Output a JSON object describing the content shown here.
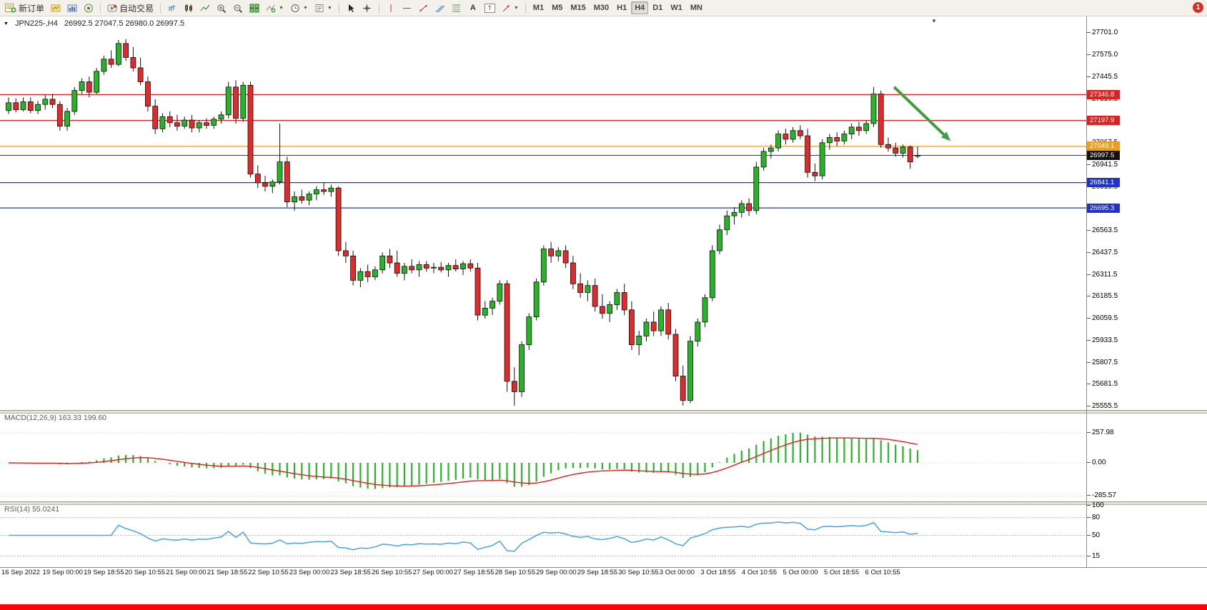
{
  "icons": {
    "dropdown": "▼",
    "shift_marker": "▼",
    "chevron": "▼",
    "text_tool": "A",
    "textbox_letter": "T"
  },
  "toolbar": {
    "new_order": "新订单",
    "autotrading": "自动交易",
    "timeframes": [
      "M1",
      "M5",
      "M15",
      "M30",
      "H1",
      "H4",
      "D1",
      "W1",
      "MN"
    ],
    "active_timeframe": "H4",
    "notification_count": "1"
  },
  "chart": {
    "symbol_period": "JPN225-,H4",
    "ohlc": "26992.5 27047.5 26980.0 26997.5"
  },
  "chart_data": {
    "type": "candlestick",
    "symbol": "JPN225-",
    "timeframe": "H4",
    "price_range": {
      "top": 27701.0,
      "bottom": 25555.5
    },
    "price_axis_ticks": [
      27701.0,
      27575.0,
      27445.5,
      27319.5,
      27193.5,
      27067.5,
      26941.5,
      26815.5,
      26689.5,
      26563.5,
      26437.5,
      26311.5,
      26185.5,
      26059.5,
      25933.5,
      25807.5,
      25681.5,
      25555.5
    ],
    "hlines": [
      {
        "price": 27346.8,
        "label": "27346.8",
        "color": "#dd2222"
      },
      {
        "price": 27197.9,
        "label": "27197.9",
        "color": "#dd2222"
      },
      {
        "price": 27049.1,
        "label": "27049.1",
        "color": "#ee9f22"
      },
      {
        "price": 26841.1,
        "label": "26841.1",
        "color": "#2233cc"
      },
      {
        "price": 26695.3,
        "label": "26695.3",
        "color": "#2233cc"
      }
    ],
    "current_price": {
      "price": 26997.5,
      "label": "26997.5",
      "color": "#111111"
    },
    "arrow": {
      "from_index": 120.8,
      "from_price": 27390,
      "to_index": 128.5,
      "to_price": 27080,
      "color": "#3f9e3f"
    },
    "candle_colors": {
      "bull": "#29b329",
      "bear": "#df2b2b",
      "outline": "#111111"
    },
    "candles": [
      [
        27255,
        27330,
        27235,
        27300
      ],
      [
        27300,
        27325,
        27245,
        27260
      ],
      [
        27260,
        27330,
        27250,
        27305
      ],
      [
        27305,
        27330,
        27240,
        27255
      ],
      [
        27255,
        27310,
        27235,
        27290
      ],
      [
        27290,
        27345,
        27260,
        27320
      ],
      [
        27320,
        27350,
        27270,
        27290
      ],
      [
        27290,
        27310,
        27140,
        27165
      ],
      [
        27165,
        27270,
        27140,
        27250
      ],
      [
        27250,
        27390,
        27230,
        27370
      ],
      [
        27370,
        27440,
        27350,
        27420
      ],
      [
        27420,
        27450,
        27330,
        27360
      ],
      [
        27360,
        27500,
        27350,
        27480
      ],
      [
        27480,
        27570,
        27460,
        27550
      ],
      [
        27550,
        27600,
        27500,
        27520
      ],
      [
        27520,
        27660,
        27510,
        27640
      ],
      [
        27640,
        27665,
        27540,
        27560
      ],
      [
        27560,
        27620,
        27480,
        27500
      ],
      [
        27500,
        27560,
        27400,
        27420
      ],
      [
        27420,
        27450,
        27250,
        27280
      ],
      [
        27280,
        27320,
        27120,
        27150
      ],
      [
        27150,
        27240,
        27130,
        27220
      ],
      [
        27220,
        27250,
        27160,
        27185
      ],
      [
        27185,
        27230,
        27140,
        27165
      ],
      [
        27165,
        27220,
        27150,
        27200
      ],
      [
        27200,
        27230,
        27130,
        27155
      ],
      [
        27155,
        27200,
        27130,
        27185
      ],
      [
        27185,
        27210,
        27150,
        27170
      ],
      [
        27170,
        27220,
        27150,
        27205
      ],
      [
        27205,
        27250,
        27180,
        27230
      ],
      [
        27230,
        27420,
        27210,
        27390
      ],
      [
        27390,
        27430,
        27180,
        27210
      ],
      [
        27210,
        27420,
        27190,
        27400
      ],
      [
        27400,
        27420,
        26870,
        26890
      ],
      [
        26890,
        26940,
        26810,
        26840
      ],
      [
        26840,
        26880,
        26790,
        26820
      ],
      [
        26820,
        26860,
        26780,
        26845
      ],
      [
        26845,
        27180,
        26830,
        26960
      ],
      [
        26960,
        26990,
        26700,
        26730
      ],
      [
        26730,
        26790,
        26680,
        26760
      ],
      [
        26760,
        26800,
        26720,
        26740
      ],
      [
        26740,
        26790,
        26710,
        26775
      ],
      [
        26775,
        26820,
        26740,
        26800
      ],
      [
        26800,
        26840,
        26770,
        26790
      ],
      [
        26790,
        26830,
        26760,
        26810
      ],
      [
        26810,
        26820,
        26420,
        26450
      ],
      [
        26450,
        26500,
        26380,
        26420
      ],
      [
        26420,
        26450,
        26250,
        26280
      ],
      [
        26280,
        26350,
        26240,
        26330
      ],
      [
        26330,
        26370,
        26270,
        26300
      ],
      [
        26300,
        26360,
        26280,
        26340
      ],
      [
        26340,
        26440,
        26320,
        26420
      ],
      [
        26420,
        26460,
        26350,
        26380
      ],
      [
        26380,
        26450,
        26300,
        26320
      ],
      [
        26320,
        26380,
        26280,
        26360
      ],
      [
        26360,
        26400,
        26320,
        26340
      ],
      [
        26340,
        26390,
        26300,
        26370
      ],
      [
        26370,
        26390,
        26330,
        26350
      ],
      [
        26350,
        26380,
        26320,
        26355
      ],
      [
        26355,
        26385,
        26325,
        26340
      ],
      [
        26340,
        26380,
        26300,
        26365
      ],
      [
        26365,
        26400,
        26330,
        26345
      ],
      [
        26345,
        26390,
        26310,
        26375
      ],
      [
        26375,
        26400,
        26330,
        26350
      ],
      [
        26350,
        26380,
        26050,
        26080
      ],
      [
        26080,
        26160,
        26060,
        26120
      ],
      [
        26120,
        26180,
        26080,
        26160
      ],
      [
        26160,
        26280,
        26140,
        26260
      ],
      [
        26260,
        26280,
        25640,
        25700
      ],
      [
        25700,
        25780,
        25560,
        25640
      ],
      [
        25640,
        25930,
        25610,
        25910
      ],
      [
        25910,
        26090,
        25880,
        26070
      ],
      [
        26070,
        26290,
        26050,
        26270
      ],
      [
        26270,
        26480,
        26250,
        26460
      ],
      [
        26460,
        26500,
        26380,
        26420
      ],
      [
        26420,
        26470,
        26390,
        26450
      ],
      [
        26450,
        26480,
        26350,
        26380
      ],
      [
        26380,
        26420,
        26230,
        26260
      ],
      [
        26260,
        26320,
        26180,
        26210
      ],
      [
        26210,
        26280,
        26160,
        26250
      ],
      [
        26250,
        26290,
        26100,
        26130
      ],
      [
        26130,
        26200,
        26060,
        26090
      ],
      [
        26090,
        26160,
        26040,
        26140
      ],
      [
        26140,
        26230,
        26110,
        26210
      ],
      [
        26210,
        26260,
        26080,
        26110
      ],
      [
        26110,
        26160,
        25880,
        25910
      ],
      [
        25910,
        25990,
        25850,
        25960
      ],
      [
        25960,
        26060,
        25930,
        26040
      ],
      [
        26040,
        26100,
        25960,
        25990
      ],
      [
        25990,
        26130,
        25960,
        26110
      ],
      [
        26110,
        26150,
        25940,
        25970
      ],
      [
        25970,
        26000,
        25700,
        25730
      ],
      [
        25730,
        25790,
        25560,
        25590
      ],
      [
        25590,
        25960,
        25575,
        25930
      ],
      [
        25930,
        26060,
        25900,
        26040
      ],
      [
        26040,
        26200,
        26010,
        26180
      ],
      [
        26180,
        26480,
        26160,
        26450
      ],
      [
        26450,
        26600,
        26430,
        26570
      ],
      [
        26570,
        26680,
        26540,
        26650
      ],
      [
        26650,
        26700,
        26600,
        26670
      ],
      [
        26670,
        26740,
        26640,
        26720
      ],
      [
        26720,
        26750,
        26650,
        26680
      ],
      [
        26680,
        26960,
        26660,
        26930
      ],
      [
        26930,
        27040,
        26910,
        27020
      ],
      [
        27020,
        27060,
        26980,
        27040
      ],
      [
        27040,
        27140,
        27020,
        27120
      ],
      [
        27120,
        27150,
        27060,
        27090
      ],
      [
        27090,
        27160,
        27070,
        27140
      ],
      [
        27140,
        27170,
        27090,
        27110
      ],
      [
        27110,
        27150,
        26870,
        26900
      ],
      [
        26900,
        26950,
        26850,
        26880
      ],
      [
        26880,
        27090,
        26860,
        27070
      ],
      [
        27070,
        27120,
        27030,
        27100
      ],
      [
        27100,
        27130,
        27050,
        27080
      ],
      [
        27080,
        27140,
        27060,
        27120
      ],
      [
        27120,
        27180,
        27090,
        27160
      ],
      [
        27160,
        27190,
        27110,
        27140
      ],
      [
        27140,
        27200,
        27120,
        27180
      ],
      [
        27180,
        27390,
        27160,
        27350
      ],
      [
        27350,
        27370,
        27040,
        27060
      ],
      [
        27060,
        27100,
        27020,
        27040
      ],
      [
        27040,
        27070,
        26990,
        27010
      ],
      [
        27010,
        27060,
        26985,
        27045
      ],
      [
        27045,
        27055,
        26920,
        26960
      ],
      [
        26992.5,
        27047.5,
        26980.0,
        26997.5
      ]
    ],
    "time_labels": [
      "16 Sep 2022",
      "19 Sep 00:00",
      "19 Sep 18:55",
      "20 Sep 10:55",
      "21 Sep 00:00",
      "21 Sep 18:55",
      "22 Sep 10:55",
      "23 Sep 00:00",
      "23 Sep 18:55",
      "26 Sep 10:55",
      "27 Sep 00:00",
      "27 Sep 18:55",
      "28 Sep 10:55",
      "29 Sep 00:00",
      "29 Sep 18:55",
      "30 Sep 10:55",
      "3 Oct 00:00",
      "3 Oct 18:55",
      "4 Oct 10:55",
      "5 Oct 00:00",
      "5 Oct 18:55",
      "6 Oct 10:55"
    ],
    "indicators": {
      "macd": {
        "label": "MACD(12,26,9) 163.33 199.60",
        "value_main": 163.33,
        "value_signal": 199.6,
        "axis_ticks": [
          "257.98",
          "0.00",
          "-285.57"
        ],
        "axis_values": [
          257.98,
          0,
          -285.57
        ],
        "hist_color": "#2db22d",
        "signal_color": "#dd2222"
      },
      "rsi": {
        "label": "RSI(14) 55.0241",
        "value": 55.0241,
        "axis_ticks": [
          "100",
          "80",
          "50",
          "15"
        ],
        "axis_values": [
          100,
          80,
          50,
          15
        ],
        "levels": [
          80,
          50,
          15
        ],
        "line_color": "#4da2e0"
      }
    }
  }
}
